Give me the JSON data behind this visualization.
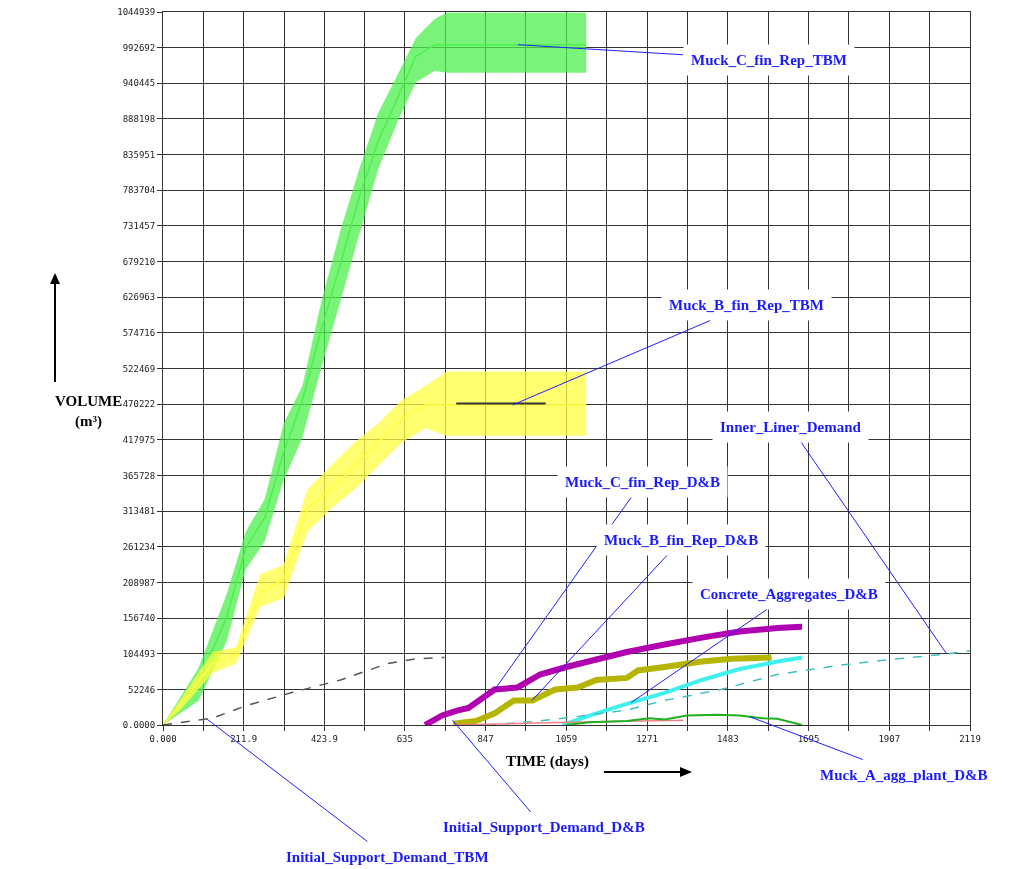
{
  "chart_data": {
    "type": "line",
    "xlabel": "TIME (days)",
    "ylabel": "VOLUME (m³)",
    "xlim": [
      0,
      2119
    ],
    "ylim": [
      0,
      1044939
    ],
    "xticks": [
      {
        "value": 0,
        "label": "0.000"
      },
      {
        "value": 106,
        "label": null
      },
      211.9,
      {
        "value": 318,
        "label": null
      },
      423.9,
      {
        "value": 530,
        "label": null
      },
      635.0,
      {
        "value": 741,
        "label": null
      },
      847.0,
      {
        "value": 953,
        "label": null
      },
      1059,
      {
        "value": 1165,
        "label": null
      },
      1271,
      {
        "value": 1377,
        "label": null
      },
      1483,
      {
        "value": 1589,
        "label": null
      },
      1695,
      {
        "value": 1801,
        "label": null
      },
      1907,
      {
        "value": 2013,
        "label": null
      },
      2119
    ],
    "yticks": [
      {
        "value": 0,
        "label": "0.0000"
      },
      52246,
      104493,
      156740,
      208987,
      261234,
      313481,
      365728,
      417975,
      470222,
      522469,
      574716,
      626963,
      679210,
      731457,
      783704,
      835951,
      888198,
      940445,
      992692,
      1044939
    ],
    "grid": true,
    "series": [
      {
        "name": "Muck_C_fin_Rep_TBM",
        "color": "#4cf04c",
        "x": [
          0,
          93,
          168,
          217,
          267,
          317,
          366,
          416,
          466,
          515,
          565,
          615,
          664,
          714,
          745,
          1111
        ],
        "values": [
          0,
          62000,
          159000,
          259000,
          304000,
          400000,
          476000,
          580000,
          676000,
          773000,
          856000,
          918000,
          980000,
          997000,
          997000,
          997000
        ],
        "lower": [
          0,
          35000,
          124000,
          228000,
          269000,
          359000,
          421000,
          524000,
          621000,
          718000,
          814000,
          883000,
          942000,
          959000,
          956000,
          956000
        ],
        "upper": [
          0,
          83000,
          193000,
          283000,
          331000,
          442000,
          497000,
          621000,
          725000,
          814000,
          897000,
          952000,
          1007000,
          1035000,
          1044000,
          1044000
        ]
      },
      {
        "name": "Muck_B_fin_Rep_TBM",
        "color": "#ffff40",
        "x": [
          0,
          43,
          130,
          192,
          255,
          317,
          379,
          441,
          503,
          565,
          627,
          689,
          745,
          1111
        ],
        "values": [
          0,
          28000,
          90000,
          104000,
          193000,
          214000,
          317000,
          345000,
          380000,
          414000,
          449000,
          469000,
          469000,
          469000
        ],
        "lower": [
          0,
          20000,
          76000,
          90000,
          173000,
          186000,
          283000,
          317000,
          345000,
          380000,
          414000,
          435000,
          424000,
          424000
        ],
        "upper": [
          0,
          35000,
          107000,
          114000,
          221000,
          235000,
          345000,
          380000,
          414000,
          442000,
          476000,
          497000,
          518000,
          518000
        ]
      },
      {
        "color": "#333333",
        "x": [
          770,
          1005
        ],
        "values": [
          471000,
          471000
        ]
      },
      {
        "name": "Initial_Support_Demand_TBM",
        "color": "#555555",
        "line_style": "dashed",
        "x": [
          0,
          130,
          217,
          341,
          466,
          590,
          664,
          739
        ],
        "values": [
          0,
          10000,
          28000,
          48000,
          66000,
          90000,
          97000,
          99000
        ]
      },
      {
        "name": "Muck_C_fin_Rep_D&B",
        "color": "#b000b0",
        "x": [
          688,
          733,
          772,
          802,
          871,
          931,
          990,
          1059,
          1138,
          1218,
          1317,
          1415,
          1514,
          1613,
          1678
        ],
        "values": [
          0,
          14000,
          21000,
          25000,
          52000,
          55000,
          74000,
          85000,
          96000,
          107000,
          118000,
          128000,
          137000,
          142000,
          144000
        ]
      },
      {
        "name": "Muck_B_fin_Rep_D&B",
        "color": "#b5b500",
        "x": [
          762,
          822,
          871,
          921,
          970,
          1030,
          1089,
          1138,
          1218,
          1247,
          1317,
          1415,
          1495,
          1598
        ],
        "values": [
          2000,
          6000,
          17000,
          36000,
          36000,
          52000,
          55000,
          66000,
          69000,
          80000,
          85000,
          93000,
          97000,
          99000
        ]
      },
      {
        "name": "Concrete_Aggregates_D&B",
        "color": "#40f0f0",
        "x": [
          1049,
          1138,
          1218,
          1317,
          1415,
          1514,
          1613,
          1678
        ],
        "values": [
          0,
          17000,
          31000,
          47000,
          66000,
          82000,
          93000,
          99000
        ]
      },
      {
        "name": "Inner_Liner_Demand",
        "color": "#40c0c0",
        "line_style": "dashed",
        "x": [
          851,
          970,
          1069,
          1218,
          1317,
          1465,
          1613,
          1782,
          1910,
          2059,
          2119
        ],
        "values": [
          0,
          5000,
          11000,
          22000,
          36000,
          52000,
          74000,
          88000,
          96000,
          104000,
          109000
        ]
      },
      {
        "name": "Initial_Support_Demand_D&B",
        "color": "#f08080",
        "x": [
          762,
          1069,
          1366
        ],
        "values": [
          0,
          4000,
          7000
        ]
      },
      {
        "name": "Muck_A_agg_plant_D&B",
        "color": "#20b020",
        "x": [
          1059,
          1119,
          1218,
          1277,
          1317,
          1376,
          1455,
          1514,
          1574,
          1613,
          1678
        ],
        "values": [
          0,
          4000,
          6000,
          10000,
          8000,
          14000,
          15000,
          14000,
          10000,
          9000,
          0
        ]
      }
    ]
  }
}
